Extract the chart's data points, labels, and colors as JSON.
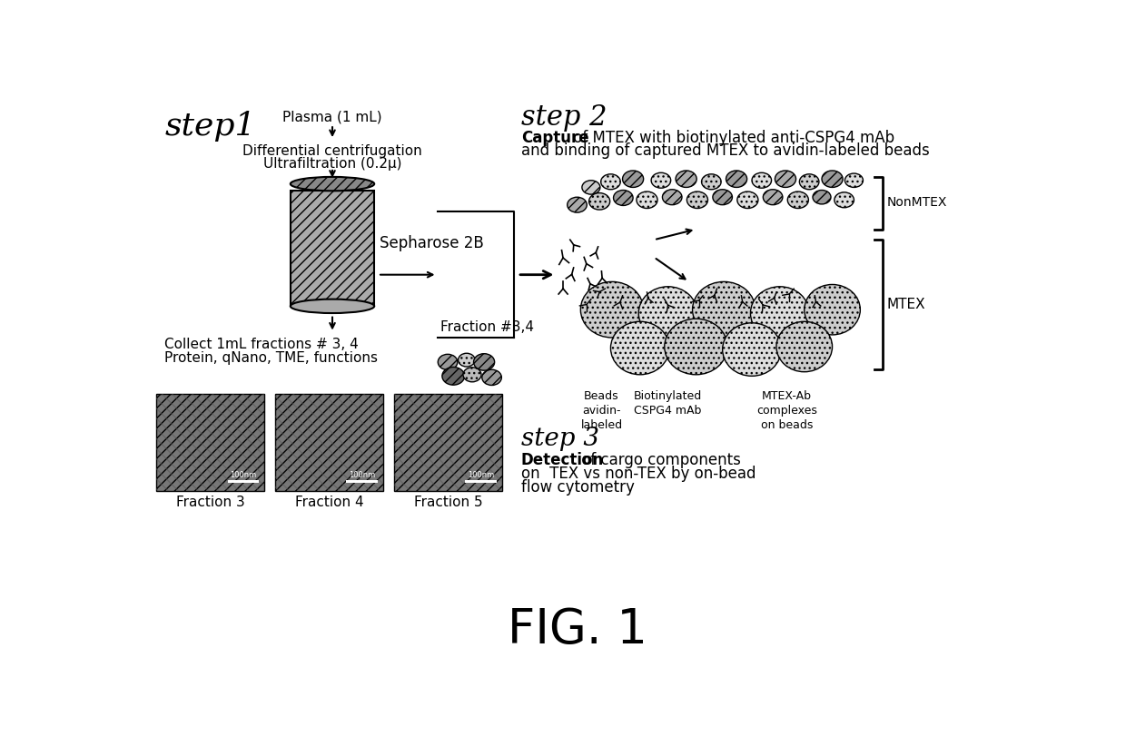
{
  "title": "FIG. 1",
  "step1_label": "step1",
  "step2_label": "step 2",
  "step3_label": "step 3",
  "plasma_text": "Plasma (1 mL)",
  "diff_centrifugation": "Differential centrifugation",
  "ultrafiltration": "Ultrafiltration (0.2μ)",
  "sepharose": "Sepharose 2B",
  "collect_text": "Collect 1mL fractions # 3, 4",
  "protein_text": "Protein, qNano, TME, functions",
  "fraction_label": "Fraction #3,4",
  "step2_capture_bold": "Capture",
  "step2_text1_rest": " of MTEX with biotinylated anti-CSPG4 mAb",
  "step2_text2": "and binding of captured MTEX to avidin-labeled beads",
  "step3_detection_bold": "Detection",
  "step3_text1_rest": " of cargo components",
  "step3_text2": "on  TEX vs non-TEX by on-bead",
  "step3_text3": "flow cytometry",
  "nonmtex_label": "NonMTEX",
  "mtex_label": "MTEX",
  "beads_label": "Beads\navidin-\nlabeled",
  "cspg4_label": "Biotinylated\nCSPG4 mAb",
  "complex_label": "MTEX-Ab\ncomplexes\non beads",
  "fraction3_label": "Fraction 3",
  "fraction4_label": "Fraction 4",
  "fraction5_label": "Fraction 5",
  "bg_color": "#ffffff",
  "text_color": "#000000"
}
